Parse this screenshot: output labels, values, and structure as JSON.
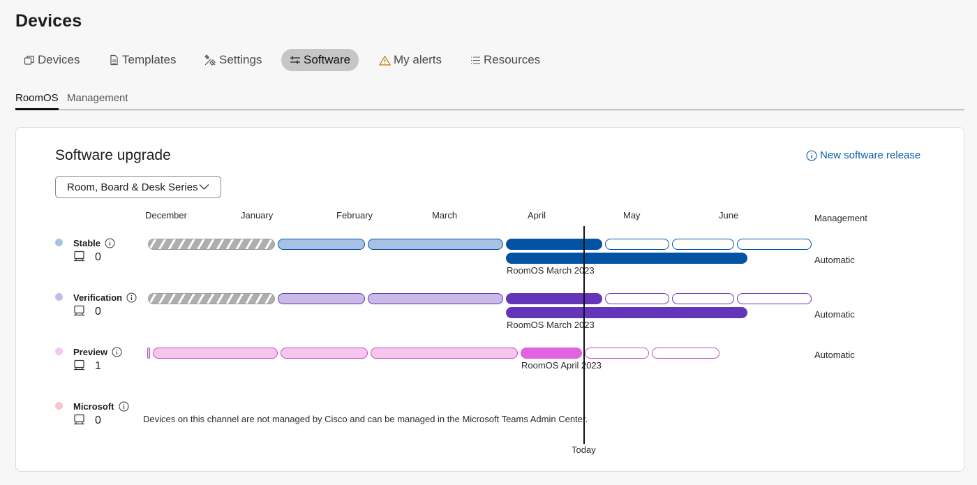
{
  "page": {
    "title": "Devices"
  },
  "nav": {
    "items": [
      {
        "label": "Devices",
        "icon": "devices-icon"
      },
      {
        "label": "Templates",
        "icon": "document-icon"
      },
      {
        "label": "Settings",
        "icon": "tools-icon"
      },
      {
        "label": "Software",
        "icon": "sliders-icon",
        "active": true
      },
      {
        "label": "My alerts",
        "icon": "warning-icon"
      },
      {
        "label": "Resources",
        "icon": "list-icon"
      }
    ]
  },
  "subtabs": {
    "items": [
      {
        "label": "RoomOS",
        "active": true
      },
      {
        "label": "Management"
      }
    ]
  },
  "card": {
    "title": "Software upgrade",
    "new_release_link": "New software release",
    "dropdown_value": "Room, Board & Desk Series"
  },
  "timeline": {
    "months": [
      "December",
      "January",
      "February",
      "March",
      "April",
      "May",
      "June"
    ],
    "management_header": "Management",
    "today_label": "Today"
  },
  "channels": [
    {
      "name": "Stable",
      "count": "0",
      "release": "RoomOS March 2023",
      "management": "Automatic",
      "color": "#a7c1e5",
      "accent": "#0353a5"
    },
    {
      "name": "Verification",
      "count": "0",
      "release": "RoomOS March 2023",
      "management": "Automatic",
      "color": "#c8b9e6",
      "accent": "#6336b9"
    },
    {
      "name": "Preview",
      "count": "1",
      "release": "RoomOS April 2023",
      "management": "Automatic",
      "color": "#f6c6ef",
      "accent": "#e063df"
    },
    {
      "name": "Microsoft",
      "count": "0",
      "note": "Devices on this channel are not managed by Cisco and can be managed in the Microsoft Teams Admin Center.",
      "color": "#f6c6cb"
    }
  ]
}
